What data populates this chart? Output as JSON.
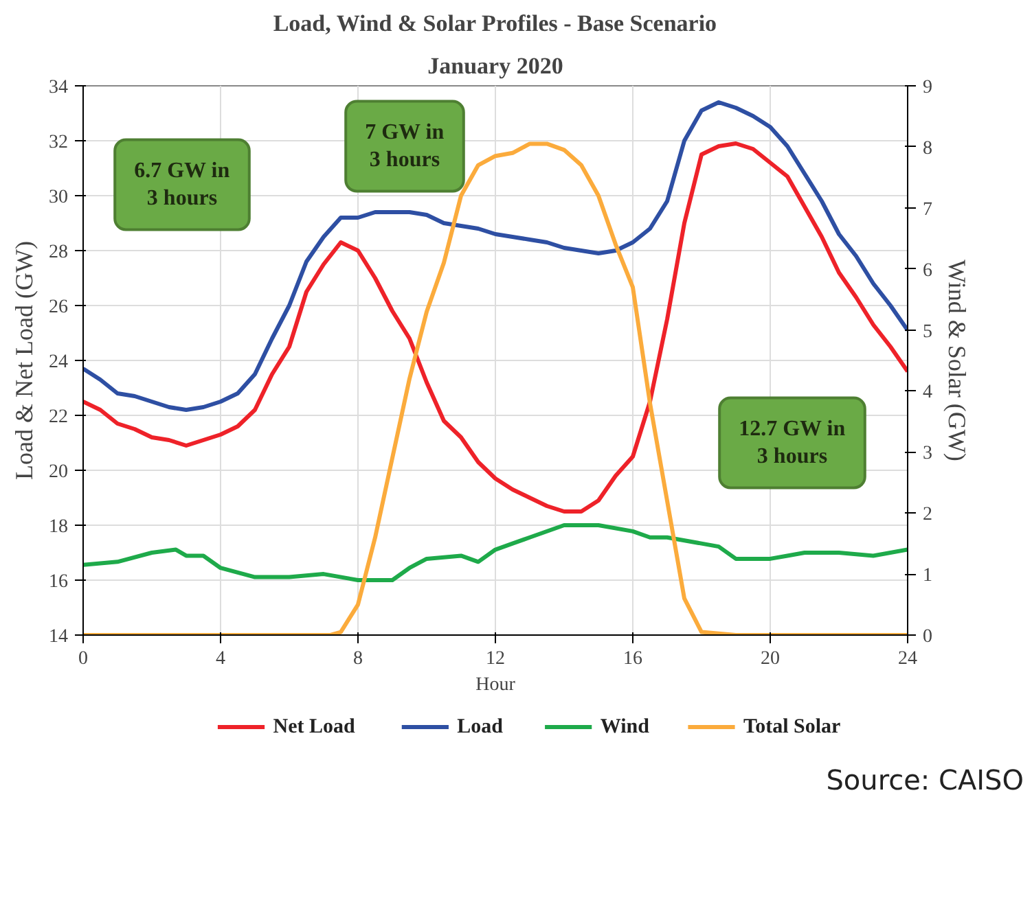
{
  "chart_data": {
    "type": "line",
    "title": "Load, Wind & Solar Profiles - Base Scenario",
    "subtitle": "January 2020",
    "xlabel": "Hour",
    "ylabel": "Load & Net Load (GW)",
    "y2label": "Wind & Solar (GW)",
    "xlim": [
      0,
      24
    ],
    "xticks": [
      0,
      4,
      8,
      12,
      16,
      20,
      24
    ],
    "ylim": [
      14,
      34
    ],
    "yticks": [
      14,
      16,
      18,
      20,
      22,
      24,
      26,
      28,
      30,
      32,
      34
    ],
    "y2lim": [
      0,
      9
    ],
    "y2ticks": [
      0,
      1,
      2,
      3,
      4,
      5,
      6,
      7,
      8,
      9
    ],
    "grid": true,
    "legend": "bottom",
    "line_style": "solid",
    "marker": "none",
    "series": [
      {
        "name": "Net Load",
        "color": "#ee2229",
        "x": [
          0,
          0.5,
          1,
          1.5,
          2,
          2.5,
          3,
          3.5,
          4,
          4.5,
          5,
          5.5,
          6,
          6.5,
          7,
          7.5,
          8,
          8.5,
          9,
          9.5,
          10,
          10.5,
          11,
          11.5,
          12,
          12.5,
          13,
          13.5,
          14,
          14.5,
          15,
          15.5,
          16,
          16.5,
          17,
          17.5,
          18,
          18.5,
          19,
          19.5,
          20,
          20.5,
          21,
          21.5,
          22,
          22.5,
          23,
          23.5,
          24
        ],
        "values": [
          22.5,
          22.2,
          21.7,
          21.5,
          21.2,
          21.1,
          20.9,
          21.1,
          21.3,
          21.6,
          22.2,
          23.5,
          24.5,
          26.5,
          27.5,
          28.3,
          28.0,
          27.0,
          25.8,
          24.8,
          23.2,
          21.8,
          21.2,
          20.3,
          19.7,
          19.3,
          19.0,
          18.7,
          18.5,
          18.5,
          18.9,
          19.8,
          20.5,
          22.5,
          25.5,
          29.0,
          31.5,
          31.8,
          31.9,
          31.7,
          31.2,
          30.7,
          29.6,
          28.5,
          27.2,
          26.3,
          25.3,
          24.5,
          23.6
        ]
      },
      {
        "name": "Load",
        "color": "#2e4fa3",
        "x": [
          0,
          0.5,
          1,
          1.5,
          2,
          2.5,
          3,
          3.5,
          4,
          4.5,
          5,
          5.5,
          6,
          6.5,
          7,
          7.5,
          8,
          8.5,
          9,
          9.5,
          10,
          10.5,
          11,
          11.5,
          12,
          12.5,
          13,
          13.5,
          14,
          14.5,
          15,
          15.5,
          16,
          16.5,
          17,
          17.5,
          18,
          18.5,
          19,
          19.5,
          20,
          20.5,
          21,
          21.5,
          22,
          22.5,
          23,
          23.5,
          24
        ],
        "values": [
          23.7,
          23.3,
          22.8,
          22.7,
          22.5,
          22.3,
          22.2,
          22.3,
          22.5,
          22.8,
          23.5,
          24.8,
          26.0,
          27.6,
          28.5,
          29.2,
          29.2,
          29.4,
          29.4,
          29.4,
          29.3,
          29.0,
          28.9,
          28.8,
          28.6,
          28.5,
          28.4,
          28.3,
          28.1,
          28.0,
          27.9,
          28.0,
          28.3,
          28.8,
          29.8,
          32.0,
          33.1,
          33.4,
          33.2,
          32.9,
          32.5,
          31.8,
          30.8,
          29.8,
          28.6,
          27.8,
          26.8,
          26.0,
          25.1
        ]
      },
      {
        "name": "Wind",
        "color": "#1eaa4a",
        "axis": "y2",
        "x": [
          0,
          1,
          2,
          2.7,
          3,
          3.5,
          4,
          5,
          6,
          7,
          8,
          9,
          9.5,
          10,
          11,
          11.5,
          12,
          12.5,
          13,
          14,
          15,
          16,
          16.5,
          17,
          18,
          18.5,
          19,
          20,
          20.5,
          21,
          22,
          23,
          24
        ],
        "values": [
          1.15,
          1.2,
          1.35,
          1.4,
          1.3,
          1.3,
          1.1,
          0.95,
          0.95,
          1.0,
          0.9,
          0.9,
          1.1,
          1.25,
          1.3,
          1.2,
          1.4,
          1.5,
          1.6,
          1.8,
          1.8,
          1.7,
          1.6,
          1.6,
          1.5,
          1.45,
          1.25,
          1.25,
          1.3,
          1.35,
          1.35,
          1.3,
          1.4
        ]
      },
      {
        "name": "Total Solar",
        "color": "#fbab3c",
        "axis": "y2",
        "x": [
          0,
          7.2,
          7.5,
          8,
          8.5,
          9,
          9.5,
          10,
          10.5,
          11,
          11.5,
          12,
          12.5,
          13,
          13.5,
          14,
          14.5,
          15,
          15.5,
          16,
          16.5,
          17,
          17.5,
          18,
          19,
          24
        ],
        "values": [
          0,
          0,
          0.05,
          0.5,
          1.6,
          2.9,
          4.2,
          5.3,
          6.1,
          7.2,
          7.7,
          7.85,
          7.9,
          8.05,
          8.05,
          7.95,
          7.7,
          7.2,
          6.4,
          5.7,
          3.8,
          2.2,
          0.6,
          0.05,
          0,
          0
        ]
      }
    ],
    "annotations": [
      "6.7 GW in\n3 hours",
      "7 GW in\n3 hours",
      "12.7 GW in\n3 hours",
      "Source: CAISO"
    ]
  }
}
